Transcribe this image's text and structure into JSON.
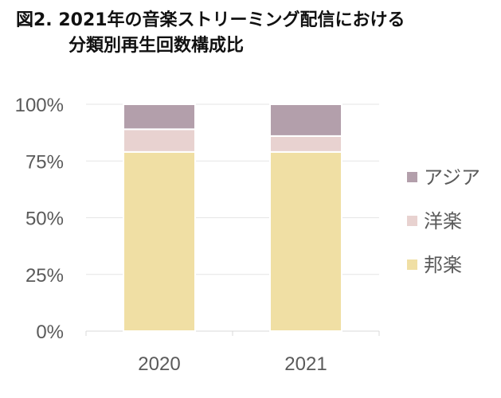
{
  "title_line1": "図2. 2021年の音楽ストリーミング配信における",
  "title_line2": "分類別再生回数構成比",
  "chart_data": {
    "type": "bar",
    "stacked": true,
    "categories": [
      "2020",
      "2021"
    ],
    "series": [
      {
        "name": "邦楽",
        "values": [
          79,
          79
        ],
        "color": "#f0dfa4"
      },
      {
        "name": "洋楽",
        "values": [
          10,
          7
        ],
        "color": "#e8d2d0"
      },
      {
        "name": "アジア",
        "values": [
          11,
          14
        ],
        "color": "#b39fab"
      }
    ],
    "yticks": [
      "0%",
      "25%",
      "50%",
      "75%",
      "100%"
    ],
    "ylim": [
      0,
      100
    ],
    "legend": "right",
    "grid": true
  }
}
